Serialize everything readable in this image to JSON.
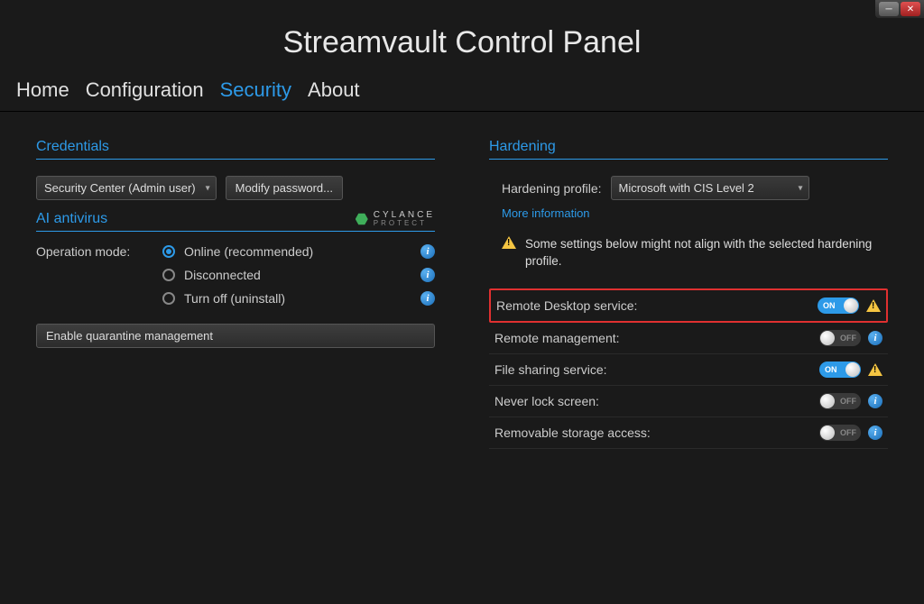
{
  "window": {
    "title": "Streamvault Control Panel"
  },
  "nav": {
    "items": [
      "Home",
      "Configuration",
      "Security",
      "About"
    ],
    "active_index": 2
  },
  "colors": {
    "accent": "#2d9ae8",
    "background": "#1a1a1a",
    "highlight_border": "#e03030",
    "warning": "#f5c542"
  },
  "credentials": {
    "section_title": "Credentials",
    "user_dropdown": "Security Center (Admin user)",
    "modify_button": "Modify password..."
  },
  "antivirus": {
    "section_title": "AI antivirus",
    "logo_line1": "CYLANCE",
    "logo_line2": "PROTECT",
    "mode_label": "Operation mode:",
    "options": [
      {
        "label": "Online (recommended)",
        "checked": true
      },
      {
        "label": "Disconnected",
        "checked": false
      },
      {
        "label": "Turn off (uninstall)",
        "checked": false
      }
    ],
    "quarantine_button": "Enable quarantine management"
  },
  "hardening": {
    "section_title": "Hardening",
    "profile_label": "Hardening profile:",
    "profile_value": "Microsoft with CIS Level 2",
    "more_info": "More information",
    "warning_text": "Some settings below might not align with the selected hardening profile.",
    "settings": [
      {
        "label": "Remote Desktop service:",
        "on": true,
        "warn": true,
        "info": false,
        "highlighted": true
      },
      {
        "label": "Remote management:",
        "on": false,
        "warn": false,
        "info": true,
        "highlighted": false
      },
      {
        "label": "File sharing service:",
        "on": true,
        "warn": true,
        "info": false,
        "highlighted": false
      },
      {
        "label": "Never lock screen:",
        "on": false,
        "warn": false,
        "info": true,
        "highlighted": false
      },
      {
        "label": "Removable storage access:",
        "on": false,
        "warn": false,
        "info": true,
        "highlighted": false
      }
    ],
    "toggle_on_text": "ON",
    "toggle_off_text": "OFF"
  }
}
